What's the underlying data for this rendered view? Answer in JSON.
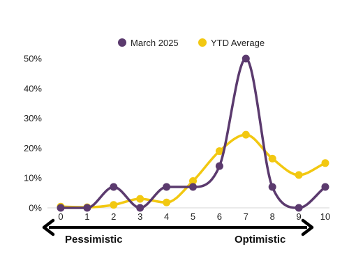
{
  "chart_data": {
    "type": "line",
    "title": "",
    "xlabel": "",
    "ylabel": "",
    "x": [
      0,
      1,
      2,
      3,
      4,
      5,
      6,
      7,
      8,
      9,
      10
    ],
    "x_tick_labels": [
      "0",
      "1",
      "2",
      "3",
      "4",
      "5",
      "6",
      "7",
      "8",
      "9",
      "10"
    ],
    "ylim": [
      0,
      50
    ],
    "y_ticks": [
      0,
      10,
      20,
      30,
      40,
      50
    ],
    "y_tick_labels": [
      "0%",
      "10%",
      "20%",
      "30%",
      "40%",
      "50%"
    ],
    "grid": false,
    "smooth": true,
    "legend_position": "top-center",
    "series": [
      {
        "name": "March 2025",
        "color": "#5b3a6e",
        "values": [
          0,
          0,
          7,
          0,
          7,
          7,
          14,
          50,
          7,
          0,
          7
        ]
      },
      {
        "name": "YTD Average",
        "color": "#f2c811",
        "values": [
          0.4,
          0.2,
          1,
          3,
          1.8,
          9,
          19,
          24.5,
          16.5,
          11,
          15
        ]
      }
    ],
    "scale_labels": {
      "left": "Pessimistic",
      "right": "Optimistic"
    }
  }
}
